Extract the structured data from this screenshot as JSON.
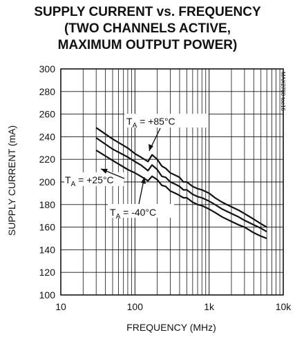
{
  "chart_data": {
    "type": "line",
    "title_lines": [
      "SUPPLY CURRENT vs. FREQUENCY",
      "(TWO CHANNELS ACTIVE,",
      "MAXIMUM OUTPUT POWER)"
    ],
    "xlabel": "FREQUENCY (MHz)",
    "ylabel": "SUPPLY CURRENT (mA)",
    "x_scale": "log",
    "xlim": [
      10,
      10000
    ],
    "ylim": [
      100,
      300
    ],
    "x_ticks": [
      {
        "value": 10,
        "label": "10"
      },
      {
        "value": 100,
        "label": "100"
      },
      {
        "value": 1000,
        "label": "1k"
      },
      {
        "value": 10000,
        "label": "10k"
      }
    ],
    "y_ticks": [
      100,
      120,
      140,
      160,
      180,
      200,
      220,
      240,
      260,
      280,
      300
    ],
    "grid": true,
    "watermark": "MAX2780 toc16",
    "series": [
      {
        "name": "TA = +85°C",
        "x": [
          30,
          50,
          80,
          100,
          120,
          150,
          170,
          200,
          230,
          260,
          300,
          350,
          400,
          450,
          500,
          600,
          700,
          800,
          1000,
          1200,
          1500,
          2000,
          2500,
          3000,
          4000,
          5000,
          6000
        ],
        "y": [
          248,
          238,
          230,
          225,
          222,
          218,
          224,
          220,
          214,
          212,
          208,
          206,
          204,
          200,
          200,
          196,
          194,
          193,
          190,
          186,
          182,
          178,
          175,
          172,
          167,
          163,
          160
        ]
      },
      {
        "name": "TA = +25°C",
        "x": [
          30,
          50,
          80,
          100,
          120,
          150,
          170,
          200,
          230,
          260,
          300,
          350,
          400,
          450,
          500,
          600,
          700,
          800,
          1000,
          1200,
          1500,
          2000,
          2500,
          3000,
          4000,
          5000,
          6000
        ],
        "y": [
          239,
          229,
          222,
          218,
          215,
          210,
          215,
          211,
          205,
          204,
          200,
          198,
          196,
          193,
          193,
          189,
          187,
          186,
          183,
          180,
          176,
          172,
          169,
          166,
          162,
          159,
          156
        ]
      },
      {
        "name": "TA = -40°C",
        "x": [
          30,
          50,
          80,
          100,
          120,
          150,
          170,
          200,
          230,
          260,
          300,
          350,
          400,
          450,
          500,
          600,
          700,
          800,
          1000,
          1200,
          1500,
          2000,
          2500,
          3000,
          4000,
          5000,
          6000
        ],
        "y": [
          228,
          219,
          211,
          208,
          205,
          201,
          205,
          202,
          197,
          196,
          192,
          190,
          188,
          186,
          186,
          182,
          180,
          179,
          176,
          173,
          169,
          165,
          162,
          160,
          155,
          152,
          150
        ]
      }
    ],
    "annotations": [
      {
        "main": "T",
        "sub": "A",
        "rest": " = +85°C"
      },
      {
        "main": "T",
        "sub": "A",
        "rest": " = +25°C"
      },
      {
        "main": "T",
        "sub": "A",
        "rest": " = -40°C"
      }
    ]
  }
}
